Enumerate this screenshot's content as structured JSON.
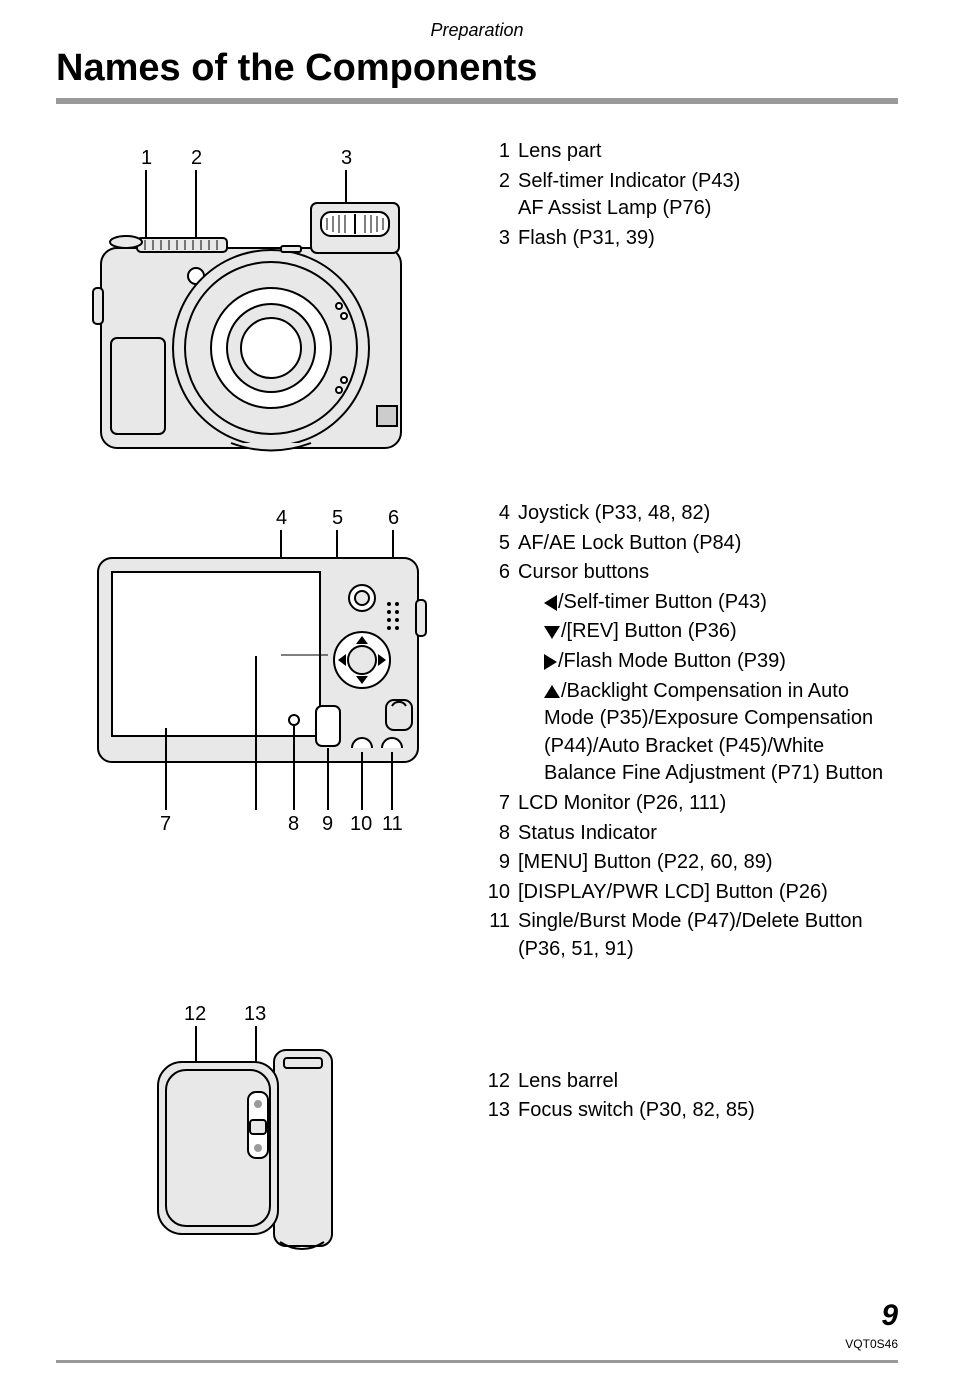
{
  "section": "Preparation",
  "title": "Names of the Components",
  "colors": {
    "rule": "#9a9a9a",
    "line_stroke": "#000000",
    "fill_light": "#e8e8e8",
    "fill_mid": "#cccccc",
    "fill_dark": "#9a9a9a",
    "text": "#000000",
    "bg": "#ffffff"
  },
  "diagram1": {
    "callouts": [
      "1",
      "2",
      "3"
    ]
  },
  "diagram2": {
    "top_callouts": [
      "4",
      "5",
      "6"
    ],
    "bottom_callouts": [
      "7",
      "8",
      "9",
      "10",
      "11"
    ]
  },
  "diagram3": {
    "callouts": [
      "12",
      "13"
    ]
  },
  "list1": [
    {
      "n": "1",
      "text": "Lens part"
    },
    {
      "n": "2",
      "text": "Self-timer Indicator (P43)\nAF Assist Lamp (P76)"
    },
    {
      "n": "3",
      "text": "Flash (P31, 39)"
    }
  ],
  "list2": [
    {
      "n": "4",
      "text": "Joystick (P33, 48, 82)"
    },
    {
      "n": "5",
      "text": "AF/AE Lock Button (P84)"
    },
    {
      "n": "6",
      "text": "Cursor buttons"
    },
    {
      "sub": "left",
      "text": "/Self-timer Button (P43)"
    },
    {
      "sub": "down",
      "text": "/[REV] Button (P36)"
    },
    {
      "sub": "right",
      "text": "/Flash Mode Button (P39)"
    },
    {
      "sub": "up",
      "text": "/Backlight Compensation in Auto Mode (P35)/Exposure Compensation (P44)/Auto Bracket (P45)/White Balance Fine Adjustment (P71) Button"
    },
    {
      "n": "7",
      "text": "LCD Monitor (P26, 111)"
    },
    {
      "n": "8",
      "text": "Status Indicator"
    },
    {
      "n": "9",
      "text": "[MENU] Button (P22, 60, 89)"
    },
    {
      "n": "10",
      "text": "[DISPLAY/PWR LCD] Button (P26)"
    },
    {
      "n": "11",
      "text": "Single/Burst Mode (P47)/Delete Button (P36, 51, 91)"
    }
  ],
  "list3": [
    {
      "n": "12",
      "text": "Lens barrel"
    },
    {
      "n": "13",
      "text": "Focus switch (P30, 82, 85)"
    }
  ],
  "page_number": "9",
  "doc_code": "VQT0S46"
}
